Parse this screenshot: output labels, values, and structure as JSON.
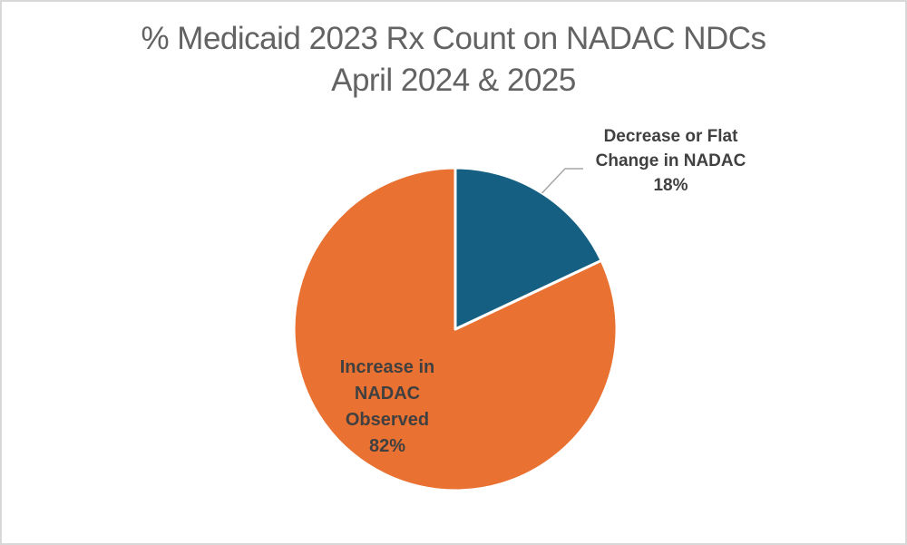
{
  "canvas": {
    "background": "#FFFFFF",
    "border_color": "#D8D8D8"
  },
  "chart_data": {
    "type": "pie",
    "title": "% Medicaid 2023 Rx Count on NADAC NDCs April 2024 & 2025",
    "title_lines": [
      "% Medicaid 2023 Rx Count on NADAC NDCs",
      "April 2024 & 2025"
    ],
    "title_color": "#636363",
    "start_angle_deg": 0,
    "direction": "clockwise",
    "legend": "none",
    "slice_border_color": "#FFFFFF",
    "leader_line_color": "#A6A6A6",
    "label_color": "#404040",
    "slices": [
      {
        "name": "decrease-or-flat",
        "label": "Decrease or Flat Change in NADAC",
        "label_lines": [
          "Decrease or Flat",
          "Change in NADAC"
        ],
        "value": 18,
        "pct_label": "18%",
        "color": "#156082",
        "label_position": "outside-right-with-leader-line"
      },
      {
        "name": "increase-observed",
        "label": "Increase in NADAC Observed",
        "label_lines": [
          "Increase in",
          "NADAC",
          "Observed"
        ],
        "value": 82,
        "pct_label": "82%",
        "color": "#E97132",
        "label_position": "inside"
      }
    ]
  }
}
